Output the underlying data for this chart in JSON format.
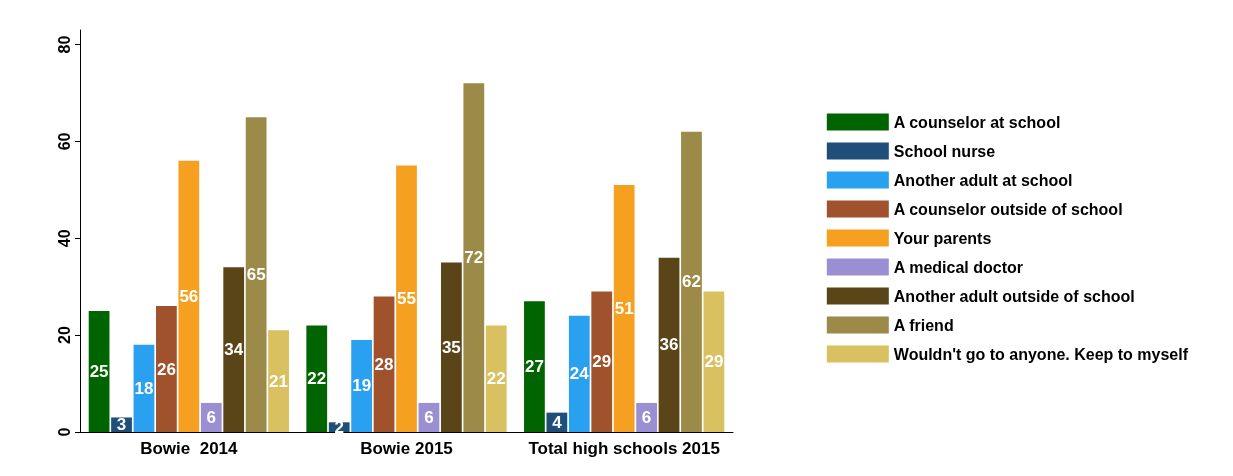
{
  "chart_data": {
    "type": "bar",
    "categories": [
      "Bowie  2014",
      "Bowie 2015",
      "Total high schools 2015"
    ],
    "series": [
      {
        "name": "A counselor at school",
        "color": "#006400",
        "values": [
          25,
          22,
          27
        ]
      },
      {
        "name": "School nurse",
        "color": "#1f4e79",
        "values": [
          3,
          2,
          4
        ]
      },
      {
        "name": "Another adult at school",
        "color": "#2aa0f0",
        "values": [
          18,
          19,
          24
        ]
      },
      {
        "name": "A counselor outside of school",
        "color": "#a0522d",
        "values": [
          26,
          28,
          29
        ]
      },
      {
        "name": "Your parents",
        "color": "#f5a020",
        "values": [
          56,
          55,
          51
        ]
      },
      {
        "name": "A medical doctor",
        "color": "#9b8fd4",
        "values": [
          6,
          6,
          6
        ]
      },
      {
        "name": "Another adult outside of school",
        "color": "#5a4518",
        "values": [
          34,
          35,
          36
        ]
      },
      {
        "name": "A friend",
        "color": "#9c8a48",
        "values": [
          65,
          72,
          62
        ]
      },
      {
        "name": "Wouldn't go to anyone. Keep to myself",
        "color": "#d9c060",
        "values": [
          21,
          22,
          29
        ]
      }
    ],
    "ylim": [
      0,
      83
    ],
    "yticks": [
      0,
      20,
      40,
      60,
      80
    ],
    "data_labels": true,
    "legend": "right"
  }
}
